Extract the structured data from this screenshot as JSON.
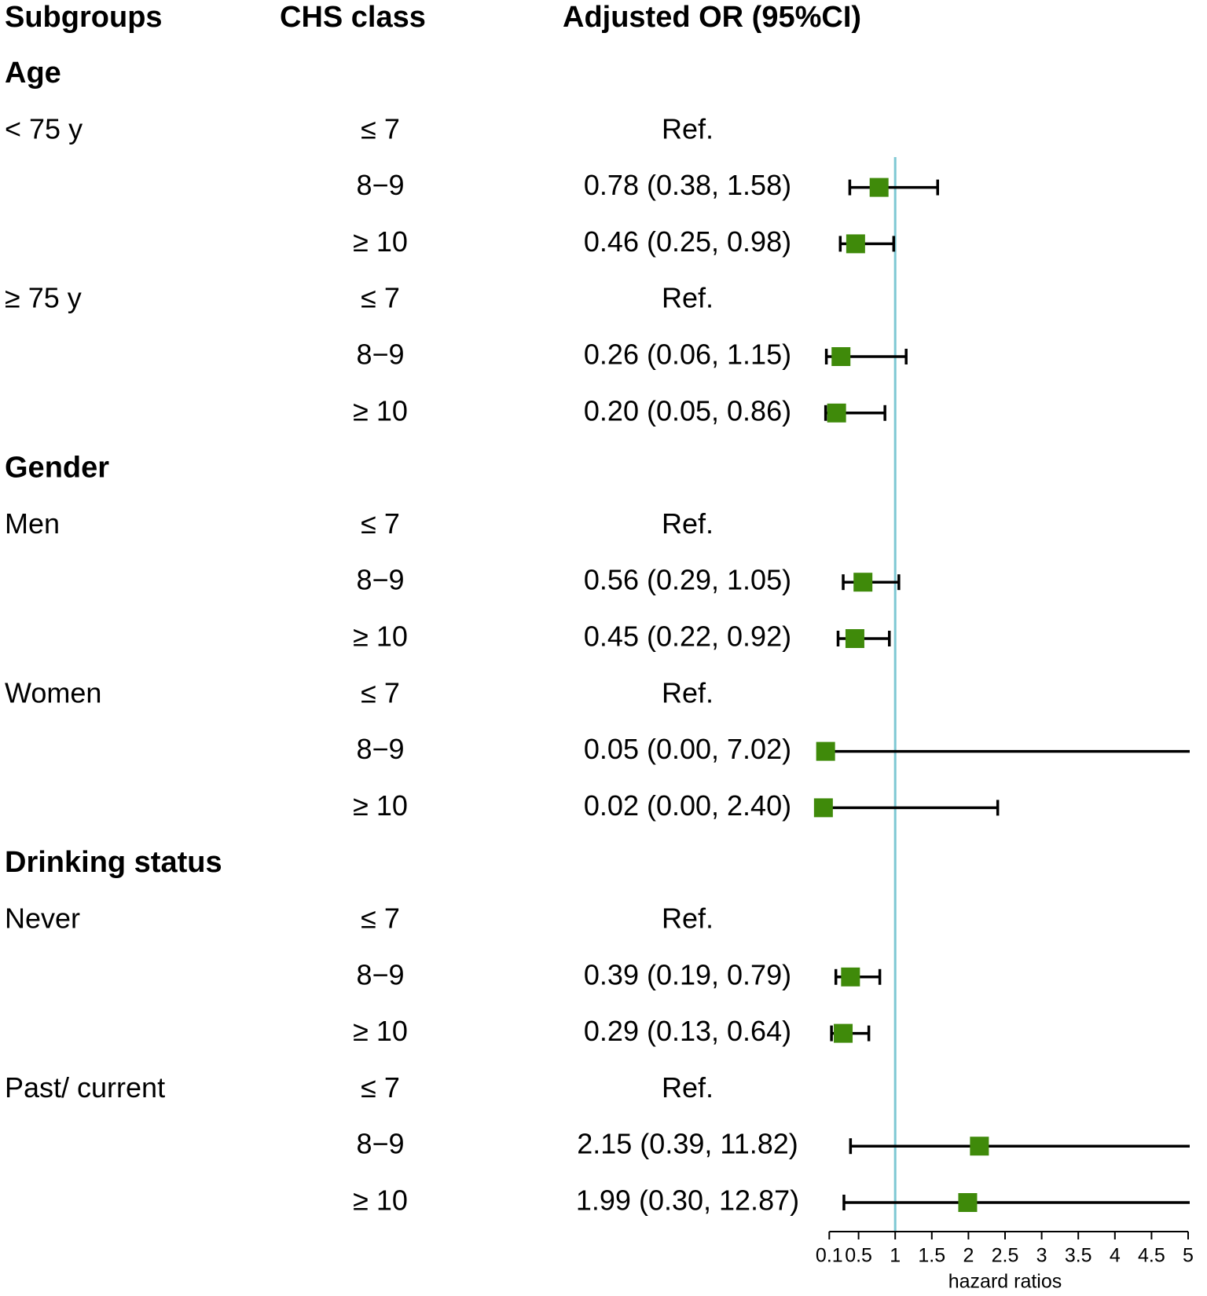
{
  "chart_data": {
    "type": "forest",
    "headers": [
      "Subgroups",
      "CHS class",
      "Adjusted OR (95%CI)"
    ],
    "rows": [
      {
        "group": "Age"
      },
      {
        "subgroup": "< 75 y",
        "class": "≤ 7",
        "label": "Ref."
      },
      {
        "class": "8−9",
        "label": "0.78 (0.38, 1.58)",
        "estimate": 0.78,
        "lower": 0.38,
        "upper": 1.58
      },
      {
        "class": "≥ 10",
        "label": "0.46 (0.25, 0.98)",
        "estimate": 0.46,
        "lower": 0.25,
        "upper": 0.98
      },
      {
        "subgroup": "≥ 75 y",
        "class": "≤ 7",
        "label": "Ref."
      },
      {
        "class": "8−9",
        "label": "0.26 (0.06, 1.15)",
        "estimate": 0.26,
        "lower": 0.06,
        "upper": 1.15
      },
      {
        "class": "≥ 10",
        "label": "0.20 (0.05, 0.86)",
        "estimate": 0.2,
        "lower": 0.05,
        "upper": 0.86
      },
      {
        "group": "Gender"
      },
      {
        "subgroup": "Men",
        "class": "≤ 7",
        "label": "Ref."
      },
      {
        "class": "8−9",
        "label": "0.56 (0.29, 1.05)",
        "estimate": 0.56,
        "lower": 0.29,
        "upper": 1.05
      },
      {
        "class": "≥ 10",
        "label": "0.45 (0.22, 0.92)",
        "estimate": 0.45,
        "lower": 0.22,
        "upper": 0.92
      },
      {
        "subgroup": "Women",
        "class": "≤ 7",
        "label": "Ref."
      },
      {
        "class": "8−9",
        "label": "0.05 (0.00, 7.02)",
        "estimate": 0.05,
        "lower": 0.0,
        "upper": 7.02
      },
      {
        "class": "≥ 10",
        "label": "0.02 (0.00, 2.40)",
        "estimate": 0.02,
        "lower": 0.0,
        "upper": 2.4
      },
      {
        "group": "Drinking status"
      },
      {
        "subgroup": "Never",
        "class": "≤ 7",
        "label": "Ref."
      },
      {
        "class": "8−9",
        "label": "0.39 (0.19, 0.79)",
        "estimate": 0.39,
        "lower": 0.19,
        "upper": 0.79
      },
      {
        "class": "≥ 10",
        "label": "0.29 (0.13, 0.64)",
        "estimate": 0.29,
        "lower": 0.13,
        "upper": 0.64
      },
      {
        "subgroup": "Past/ current",
        "class": "≤ 7",
        "label": "Ref."
      },
      {
        "class": "8−9",
        "label": "2.15 (0.39, 11.82)",
        "estimate": 2.15,
        "lower": 0.39,
        "upper": 11.82
      },
      {
        "class": "≥ 10",
        "label": "1.99 (0.30, 12.87)",
        "estimate": 1.99,
        "lower": 0.3,
        "upper": 12.87
      }
    ],
    "xlabel": "hazard ratios",
    "xlim": [
      0,
      5
    ],
    "xticks": [
      0.1,
      0.5,
      1,
      1.5,
      2,
      2.5,
      3,
      3.5,
      4,
      4.5,
      5
    ],
    "reference_line": 1,
    "reference_color": "#7ec8d3",
    "color": "#3f8a0a"
  }
}
